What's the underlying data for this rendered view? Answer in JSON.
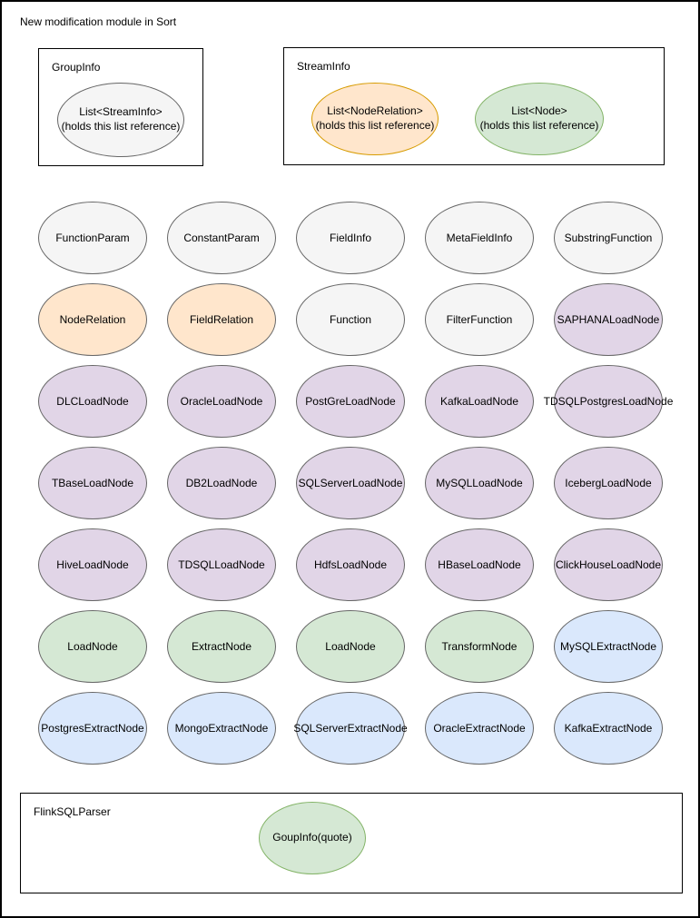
{
  "title": "New modification module in Sort",
  "colors": {
    "gray": {
      "fill": "#f5f5f5",
      "stroke": "#666666"
    },
    "orange": {
      "fill": "#ffe6cc",
      "stroke": "#d79b00"
    },
    "green": {
      "fill": "#d5e8d4",
      "stroke": "#82b366"
    },
    "purple": {
      "fill": "#e1d5e7",
      "stroke": "#9673a6"
    },
    "blue": {
      "fill": "#dae8fc",
      "stroke": "#6c8ebf"
    }
  },
  "group_info_box": {
    "label": "GroupInfo",
    "ellipse": {
      "line1": "List<StreamInfo>",
      "line2": "(holds this list reference)",
      "color": "gray"
    }
  },
  "stream_info_box": {
    "label": "StreamInfo",
    "ellipses": [
      {
        "line1": "List<NodeRelation>",
        "line2": "(holds this list reference)",
        "color": "orange"
      },
      {
        "line1": "List<Node>",
        "line2": "(holds this list reference)",
        "color": "green"
      }
    ]
  },
  "grid": {
    "rows": [
      {
        "cells": [
          {
            "label": "FunctionParam",
            "color": "gray"
          },
          {
            "label": "ConstantParam",
            "color": "gray"
          },
          {
            "label": "FieldInfo",
            "color": "gray"
          },
          {
            "label": "MetaFieldInfo",
            "color": "gray"
          },
          {
            "label": "SubstringFunction",
            "color": "gray"
          }
        ]
      },
      {
        "cells": [
          {
            "label": "NodeRelation",
            "color": "orange"
          },
          {
            "label": "FieldRelation",
            "color": "orange"
          },
          {
            "label": "Function",
            "color": "gray"
          },
          {
            "label": "FilterFunction",
            "color": "gray"
          },
          {
            "label": "SAPHANALoadNode",
            "color": "purple"
          }
        ]
      },
      {
        "cells": [
          {
            "label": "DLCLoadNode",
            "color": "purple"
          },
          {
            "label": "OracleLoadNode",
            "color": "purple"
          },
          {
            "label": "PostGreLoadNode",
            "color": "purple"
          },
          {
            "label": "KafkaLoadNode",
            "color": "purple"
          },
          {
            "label": "TDSQLPostgresLoadNode",
            "color": "purple"
          }
        ]
      },
      {
        "cells": [
          {
            "label": "TBaseLoadNode",
            "color": "purple"
          },
          {
            "label": "DB2LoadNode",
            "color": "purple"
          },
          {
            "label": "SQLServerLoadNode",
            "color": "purple"
          },
          {
            "label": "MySQLLoadNode",
            "color": "purple"
          },
          {
            "label": "IcebergLoadNode",
            "color": "purple"
          }
        ]
      },
      {
        "cells": [
          {
            "label": "HiveLoadNode",
            "color": "purple"
          },
          {
            "label": "TDSQLLoadNode",
            "color": "purple"
          },
          {
            "label": "HdfsLoadNode",
            "color": "purple"
          },
          {
            "label": "HBaseLoadNode",
            "color": "purple"
          },
          {
            "label": "ClickHouseLoadNode",
            "color": "purple"
          }
        ]
      },
      {
        "cells": [
          {
            "label": "LoadNode",
            "color": "green"
          },
          {
            "label": "ExtractNode",
            "color": "green"
          },
          {
            "label": "LoadNode",
            "color": "green"
          },
          {
            "label": "TransformNode",
            "color": "green"
          },
          {
            "label": "MySQLExtractNode",
            "color": "blue"
          }
        ]
      },
      {
        "cells": [
          {
            "label": "PostgresExtractNode",
            "color": "blue"
          },
          {
            "label": "MongoExtractNode",
            "color": "blue"
          },
          {
            "label": "SQLServerExtractNode",
            "color": "blue"
          },
          {
            "label": "OracleExtractNode",
            "color": "blue"
          },
          {
            "label": "KafkaExtractNode",
            "color": "blue"
          }
        ]
      }
    ]
  },
  "flink_box": {
    "label": "FlinkSQLParser",
    "ellipse": {
      "label": "GoupInfo(quote)",
      "color": "green"
    }
  }
}
